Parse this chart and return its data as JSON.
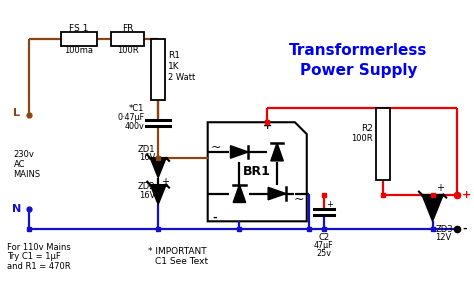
{
  "title_line1": "Transformerless",
  "title_line2": "Power Supply",
  "title_color": "#0000EE",
  "bg_color": "#FFFFFF",
  "wire_brown": "#8B4513",
  "wire_blue": "#1111CC",
  "wire_red": "#EE0000",
  "wire_black": "#000000",
  "fuse_label": "FS 1",
  "fuse_val": "100ma",
  "fr_label": "FR",
  "fr_val": "100R",
  "r1_label": "R1",
  "r1_val1": "1K",
  "r1_val2": "2 Watt",
  "c1_label": "*C1",
  "c1_val1": "0·47μF",
  "c1_val2": "400v",
  "zd1_label": "ZD1",
  "zd1_val": "16V",
  "zd2_label": "ZD2",
  "zd2_val": "16V",
  "br1_label": "BR1",
  "r2_label": "R2",
  "r2_val": "100R",
  "c2_label": "C2",
  "c2_val1": "47μF",
  "c2_val2": "25v",
  "zd3_label": "ZD3",
  "zd3_val": "12V",
  "note1": "For 110v Mains",
  "note2": "Try C1 = 1μF",
  "note3": "and R1 = 470R",
  "imp1": "* IMPORTANT",
  "imp2": "C1 See Text",
  "L_label": "L",
  "N_label": "N",
  "mains1": "230v",
  "mains2": "AC",
  "mains3": "MAINS",
  "plus": "+",
  "minus": "-"
}
